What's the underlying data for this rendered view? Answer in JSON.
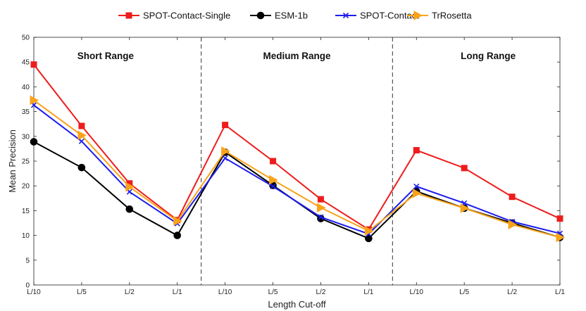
{
  "chart_data": {
    "type": "line",
    "xlabel": "Length Cut-off",
    "ylabel": "Mean Precision",
    "ylim": [
      0,
      50
    ],
    "yticks": [
      0,
      5,
      10,
      15,
      20,
      25,
      30,
      35,
      40,
      45,
      50
    ],
    "categories": [
      "L/10",
      "L/5",
      "L/2",
      "L/1",
      "L/10",
      "L/5",
      "L/2",
      "L/1",
      "L/10",
      "L/5",
      "L/2",
      "L/1"
    ],
    "groups": [
      {
        "label": "Short Range",
        "start": 0,
        "end": 3
      },
      {
        "label": "Medium Range",
        "start": 4,
        "end": 7
      },
      {
        "label": "Long Range",
        "start": 8,
        "end": 11
      }
    ],
    "legend_position": "top",
    "grid": false,
    "series": [
      {
        "name": "SPOT-Contact-Single",
        "color": "#ee1c1c",
        "marker": "square",
        "values": [
          44.5,
          32.1,
          20.5,
          13.1,
          32.3,
          25.0,
          17.3,
          11.2,
          27.2,
          23.6,
          17.8,
          13.4
        ]
      },
      {
        "name": "ESM-1b",
        "color": "#000000",
        "marker": "circle",
        "values": [
          28.9,
          23.7,
          15.3,
          10.0,
          26.8,
          20.1,
          13.4,
          9.4,
          18.9,
          15.5,
          12.5,
          9.6
        ]
      },
      {
        "name": "SPOT-Contact",
        "color": "#1c1cee",
        "marker": "x",
        "values": [
          36.3,
          29.0,
          18.8,
          12.4,
          25.6,
          19.9,
          13.7,
          10.3,
          19.9,
          16.5,
          12.8,
          10.4
        ]
      },
      {
        "name": "TrRosetta",
        "color": "#f9a31b",
        "marker": "triangle-right",
        "values": [
          37.3,
          30.2,
          19.8,
          12.9,
          27.0,
          21.2,
          15.6,
          10.9,
          18.5,
          15.5,
          12.2,
          9.6
        ]
      }
    ]
  }
}
